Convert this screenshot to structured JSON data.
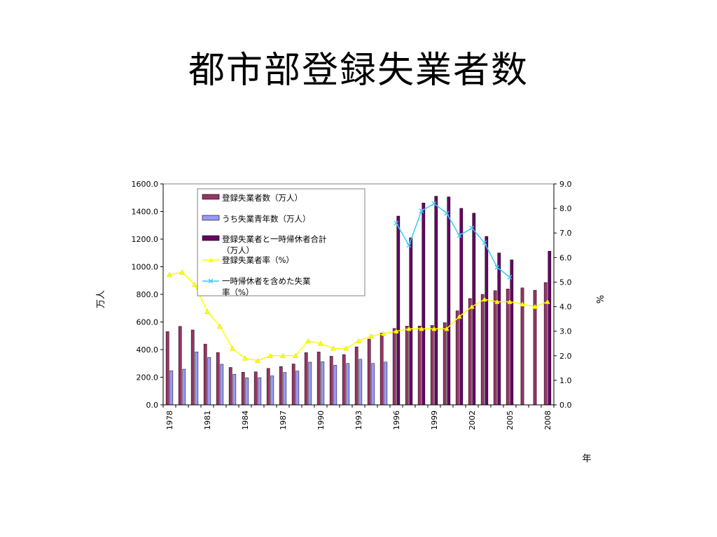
{
  "slide": {
    "title": "都市部登録失業者数"
  },
  "chart_data": {
    "type": "bar",
    "ylabel": "万人",
    "y2label": "%",
    "xlabel": "年",
    "ylim": [
      0,
      1600
    ],
    "y2lim": [
      0,
      9
    ],
    "yticks": [
      "0.0",
      "200.0",
      "400.0",
      "600.0",
      "800.0",
      "1000.0",
      "1200.0",
      "1400.0",
      "1600.0"
    ],
    "y2ticks": [
      "0.0",
      "1.0",
      "2.0",
      "3.0",
      "4.0",
      "5.0",
      "6.0",
      "7.0",
      "8.0",
      "9.0"
    ],
    "categories": [
      1978,
      1979,
      1980,
      1981,
      1982,
      1983,
      1984,
      1985,
      1986,
      1987,
      1988,
      1989,
      1990,
      1991,
      1992,
      1993,
      1994,
      1995,
      1996,
      1997,
      1998,
      1999,
      2000,
      2001,
      2002,
      2003,
      2004,
      2005,
      2006,
      2007,
      2008
    ],
    "xtick_labels": [
      "1978",
      "1981",
      "1984",
      "1987",
      "1990",
      "1993",
      "1996",
      "1999",
      "2002",
      "2005",
      "2008"
    ],
    "legend_position": "top-left",
    "grid": false,
    "series": [
      {
        "name": "登録失業者数（万人）",
        "kind": "bar",
        "axis": "left",
        "color": "#993366",
        "values": [
          530,
          568,
          542,
          440,
          379,
          271,
          236,
          239,
          264,
          277,
          296,
          378,
          383,
          352,
          364,
          420,
          476,
          520,
          553,
          570,
          571,
          575,
          595,
          681,
          770,
          800,
          827,
          839,
          847,
          830,
          886
        ]
      },
      {
        "name": "うち失業青年数（万人）",
        "kind": "bar",
        "axis": "left",
        "color": "#9999ff",
        "values": [
          247,
          258,
          383,
          343,
          294,
          222,
          196,
          197,
          210,
          235,
          245,
          309,
          312,
          287,
          300,
          330,
          300,
          310,
          null,
          null,
          null,
          null,
          null,
          null,
          null,
          null,
          null,
          null,
          null,
          null,
          null
        ]
      },
      {
        "name": "登録失業者と一時帰休者合計（万人）",
        "kind": "bar",
        "axis": "left",
        "color": "#660066",
        "values": [
          null,
          null,
          null,
          null,
          null,
          null,
          null,
          null,
          null,
          null,
          null,
          null,
          null,
          null,
          null,
          null,
          null,
          null,
          1367,
          1210,
          1462,
          1511,
          1506,
          1423,
          1388,
          1220,
          1100,
          1050,
          null,
          null,
          1113
        ]
      },
      {
        "name": "登録失業者率（%）",
        "kind": "line",
        "axis": "right",
        "color": "#ffff00",
        "marker": "triangle",
        "values": [
          5.3,
          5.4,
          4.9,
          3.8,
          3.2,
          2.3,
          1.9,
          1.8,
          2.0,
          2.0,
          2.0,
          2.6,
          2.5,
          2.3,
          2.3,
          2.6,
          2.8,
          2.9,
          3.0,
          3.1,
          3.1,
          3.1,
          3.1,
          3.6,
          4.0,
          4.3,
          4.2,
          4.2,
          4.1,
          4.0,
          4.2
        ]
      },
      {
        "name": "一時帰休者を含めた失業率（%）",
        "kind": "line",
        "axis": "right",
        "color": "#33ccff",
        "marker": "x",
        "values": [
          null,
          null,
          null,
          null,
          null,
          null,
          null,
          null,
          null,
          null,
          null,
          null,
          null,
          null,
          null,
          null,
          null,
          null,
          7.4,
          6.5,
          7.9,
          8.2,
          7.8,
          6.9,
          7.2,
          6.6,
          5.6,
          5.2,
          null,
          null,
          null
        ]
      }
    ]
  }
}
